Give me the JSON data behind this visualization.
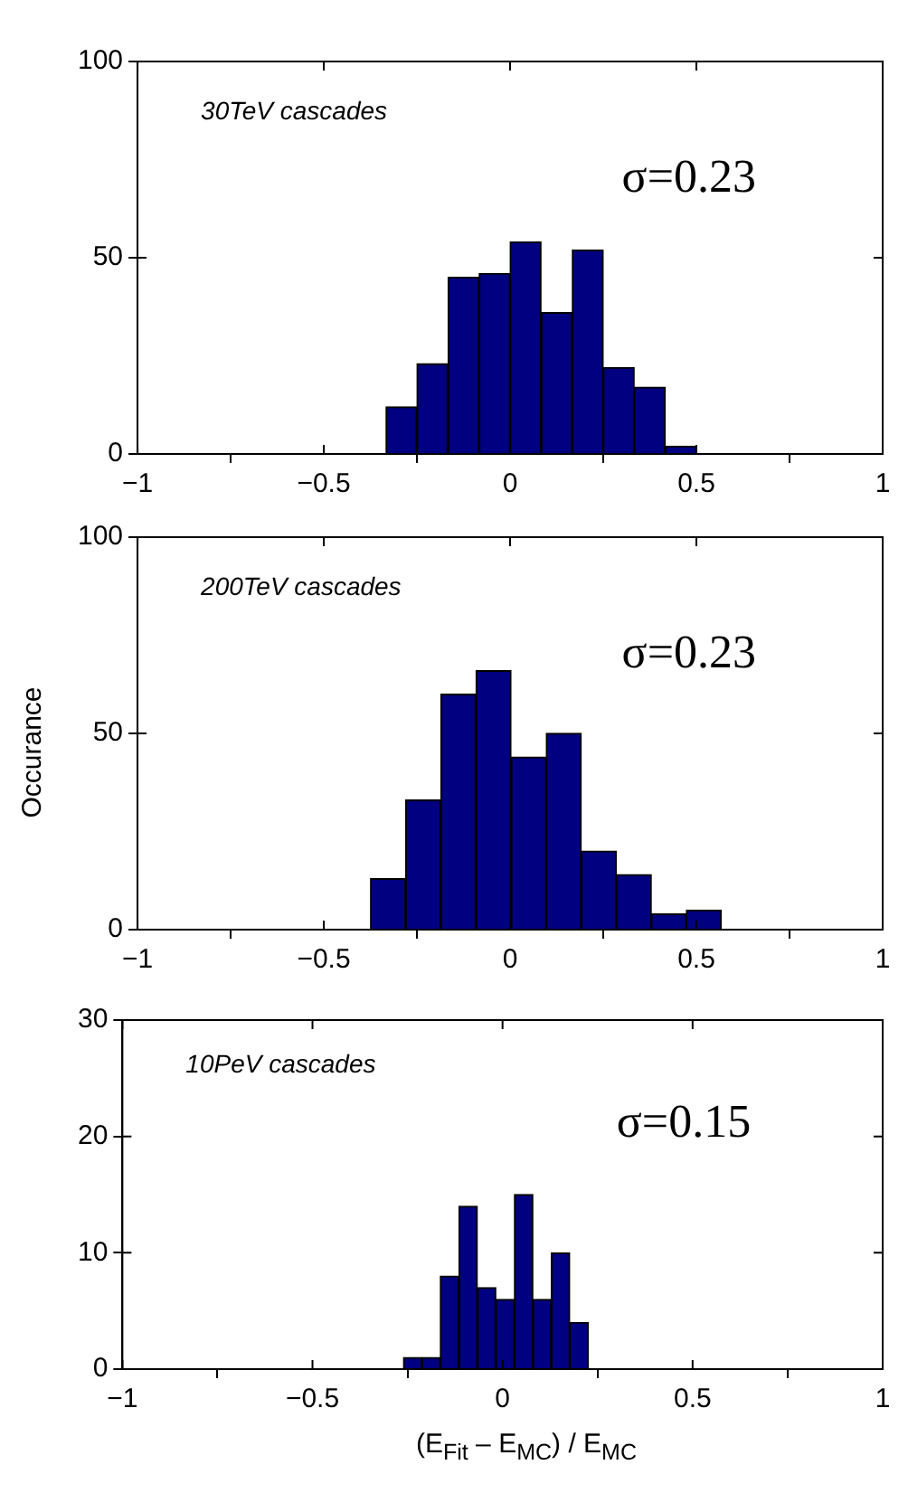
{
  "chart_data": [
    {
      "type": "histogram",
      "bins": [
        -0.333,
        -0.25,
        -0.167,
        -0.083,
        0,
        0.083,
        0.167,
        0.25,
        0.333,
        0.417,
        0.5
      ],
      "values": [
        12,
        23,
        45,
        46,
        54,
        36,
        52,
        22,
        17,
        2
      ],
      "color": "#000080",
      "xlim": [
        -1,
        1
      ],
      "xticks": [
        -1,
        -0.5,
        0,
        0.5,
        1
      ],
      "ylim": [
        0,
        100
      ],
      "yticks": [
        0,
        50,
        100
      ],
      "grid": false,
      "legend": false,
      "annotations": [
        "30TeV cascades",
        "σ=0.23"
      ]
    },
    {
      "type": "histogram",
      "bins": [
        -0.375,
        -0.28,
        -0.186,
        -0.092,
        0.003,
        0.097,
        0.191,
        0.285,
        0.379,
        0.473,
        0.567
      ],
      "values": [
        13,
        33,
        60,
        66,
        44,
        50,
        20,
        14,
        4,
        5
      ],
      "color": "#000080",
      "xlim": [
        -1,
        1
      ],
      "xticks": [
        -1,
        -0.5,
        0,
        0.5,
        1
      ],
      "ylim": [
        0,
        100
      ],
      "yticks": [
        0,
        50,
        100
      ],
      "ylabel": "Occurance",
      "grid": false,
      "legend": false,
      "annotations": [
        "200TeV cascades",
        "σ=0.23"
      ]
    },
    {
      "type": "histogram",
      "bins": [
        -0.261,
        -0.212,
        -0.164,
        -0.115,
        -0.066,
        -0.018,
        0.031,
        0.08,
        0.128,
        0.177,
        0.225
      ],
      "values": [
        1,
        1,
        8,
        14,
        7,
        6,
        15,
        6,
        10,
        4
      ],
      "color": "#000080",
      "xlim": [
        -1,
        1
      ],
      "xticks": [
        -1,
        -0.5,
        0,
        0.5,
        1
      ],
      "ylim": [
        0,
        30
      ],
      "yticks": [
        0,
        10,
        20,
        30
      ],
      "xlabel": "(E$_{Fit}$ – E$_{MC}$) / E$_{MC}$",
      "grid": false,
      "legend": false,
      "annotations": [
        "10PeV cascades",
        "σ=0.15"
      ]
    }
  ]
}
